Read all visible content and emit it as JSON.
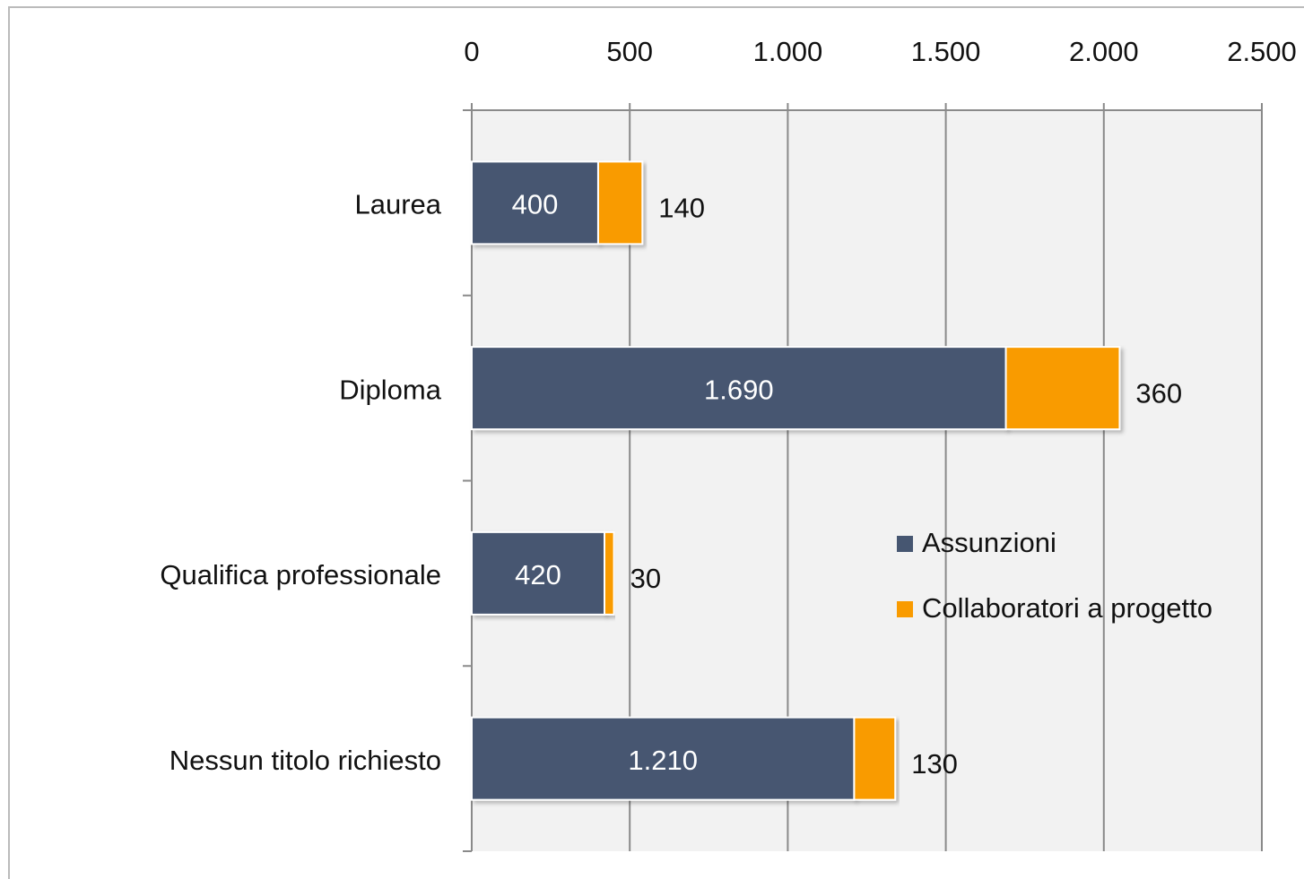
{
  "chart_data": {
    "type": "stacked-barh",
    "categories": [
      "Laurea",
      "Diploma",
      "Qualifica professionale",
      "Nessun titolo richiesto"
    ],
    "series": [
      {
        "name": "Assunzioni",
        "color": "#465671",
        "values": [
          400,
          1690,
          420,
          1210
        ],
        "value_labels": [
          "400",
          "1.690",
          "420",
          "1.210"
        ]
      },
      {
        "name": "Collaboratori a progetto",
        "color": "#f99b00",
        "values": [
          140,
          360,
          30,
          130
        ]
      }
    ],
    "xlim": [
      0,
      2500
    ],
    "xticks": [
      0,
      500,
      {
        "value": 1000,
        "label": "1.000"
      },
      {
        "value": 1500,
        "label": "1.500"
      },
      {
        "value": 2000,
        "label": "2.000"
      },
      {
        "value": 2500,
        "label": "2.500"
      }
    ],
    "grid": true,
    "legend": "right"
  }
}
